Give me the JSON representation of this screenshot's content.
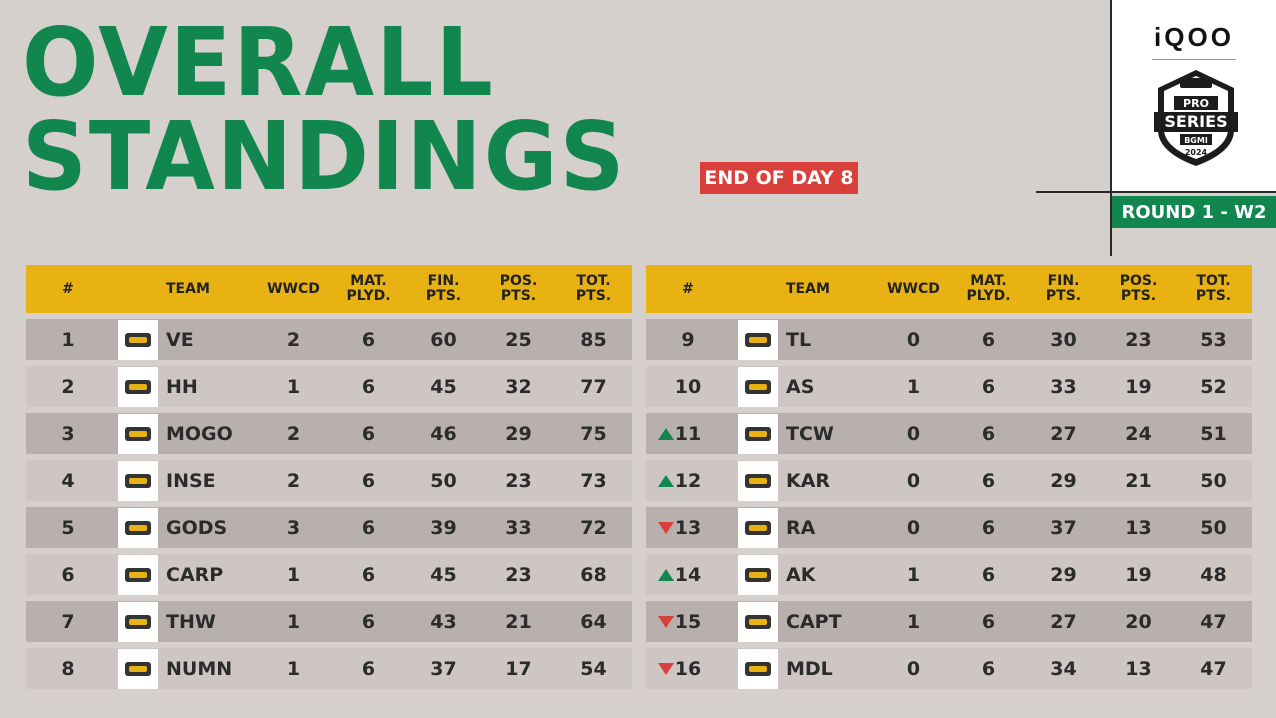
{
  "title_line1": "OVERALL",
  "title_line2": "STANDINGS",
  "day_badge": "END OF DAY 8",
  "brand": "iQOO",
  "round_badge": "ROUND 1 - W2",
  "series_logo_text": [
    "PRO",
    "SERIES",
    "BGMI",
    "2024"
  ],
  "headers": {
    "rank": "#",
    "team": "TEAM",
    "wwcd": "WWCD",
    "mat_1": "MAT.",
    "mat_2": "PLYD.",
    "fin_1": "FIN.",
    "fin_2": "PTS.",
    "pos_1": "POS.",
    "pos_2": "PTS.",
    "tot_1": "TOT.",
    "tot_2": "PTS."
  },
  "left_rows": [
    {
      "rank": "1",
      "team": "VE",
      "wwcd": "2",
      "mat": "6",
      "fin": "60",
      "pos": "25",
      "tot": "85",
      "logo": "ve-logo",
      "trend": ""
    },
    {
      "rank": "2",
      "team": "HH",
      "wwcd": "1",
      "mat": "6",
      "fin": "45",
      "pos": "32",
      "tot": "77",
      "logo": "hh-logo",
      "trend": ""
    },
    {
      "rank": "3",
      "team": "MOGO",
      "wwcd": "2",
      "mat": "6",
      "fin": "46",
      "pos": "29",
      "tot": "75",
      "logo": "mogo-logo",
      "trend": ""
    },
    {
      "rank": "4",
      "team": "INSE",
      "wwcd": "2",
      "mat": "6",
      "fin": "50",
      "pos": "23",
      "tot": "73",
      "logo": "inse-logo",
      "trend": ""
    },
    {
      "rank": "5",
      "team": "GODS",
      "wwcd": "3",
      "mat": "6",
      "fin": "39",
      "pos": "33",
      "tot": "72",
      "logo": "gods-logo",
      "trend": ""
    },
    {
      "rank": "6",
      "team": "CARP",
      "wwcd": "1",
      "mat": "6",
      "fin": "45",
      "pos": "23",
      "tot": "68",
      "logo": "carp-logo",
      "trend": ""
    },
    {
      "rank": "7",
      "team": "THW",
      "wwcd": "1",
      "mat": "6",
      "fin": "43",
      "pos": "21",
      "tot": "64",
      "logo": "thw-logo",
      "trend": ""
    },
    {
      "rank": "8",
      "team": "NUMN",
      "wwcd": "1",
      "mat": "6",
      "fin": "37",
      "pos": "17",
      "tot": "54",
      "logo": "numn-logo",
      "trend": ""
    }
  ],
  "right_rows": [
    {
      "rank": "9",
      "team": "TL",
      "wwcd": "0",
      "mat": "6",
      "fin": "30",
      "pos": "23",
      "tot": "53",
      "logo": "tl-logo",
      "trend": ""
    },
    {
      "rank": "10",
      "team": "AS",
      "wwcd": "1",
      "mat": "6",
      "fin": "33",
      "pos": "19",
      "tot": "52",
      "logo": "as-logo",
      "trend": ""
    },
    {
      "rank": "11",
      "team": "TCW",
      "wwcd": "0",
      "mat": "6",
      "fin": "27",
      "pos": "24",
      "tot": "51",
      "logo": "tcw-logo",
      "trend": "up"
    },
    {
      "rank": "12",
      "team": "KAR",
      "wwcd": "0",
      "mat": "6",
      "fin": "29",
      "pos": "21",
      "tot": "50",
      "logo": "kar-logo",
      "trend": "up"
    },
    {
      "rank": "13",
      "team": "RA",
      "wwcd": "0",
      "mat": "6",
      "fin": "37",
      "pos": "13",
      "tot": "50",
      "logo": "ra-logo",
      "trend": "down"
    },
    {
      "rank": "14",
      "team": "AK",
      "wwcd": "1",
      "mat": "6",
      "fin": "29",
      "pos": "19",
      "tot": "48",
      "logo": "ak-logo",
      "trend": "up"
    },
    {
      "rank": "15",
      "team": "CAPT",
      "wwcd": "1",
      "mat": "6",
      "fin": "27",
      "pos": "20",
      "tot": "47",
      "logo": "capt-logo",
      "trend": "down"
    },
    {
      "rank": "16",
      "team": "MDL",
      "wwcd": "0",
      "mat": "6",
      "fin": "34",
      "pos": "13",
      "tot": "47",
      "logo": "mdl-logo",
      "trend": "down"
    }
  ],
  "colors": {
    "background": "#d6d0cd",
    "title_green": "#12864f",
    "header_yellow": "#e8b213",
    "badge_red": "#d9403c",
    "row_dark": "#b8b0ad",
    "row_light": "#cdc6c3"
  }
}
